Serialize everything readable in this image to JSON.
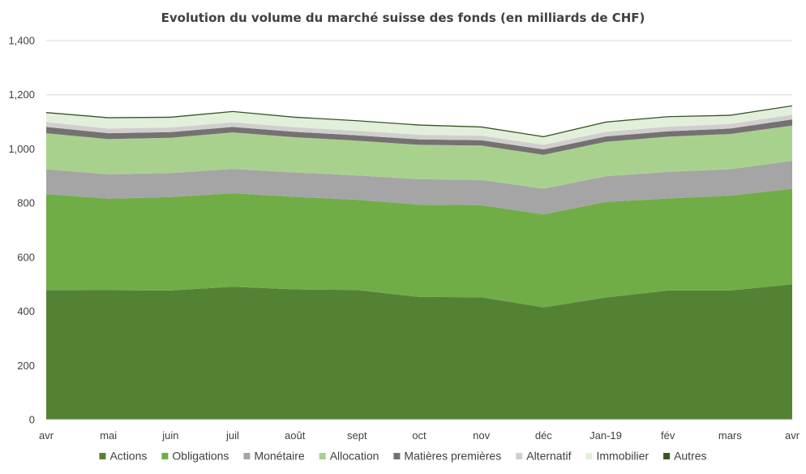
{
  "chart_data": {
    "type": "area",
    "stacked": true,
    "title": "Evolution du volume du marché suisse des fonds (en milliards de CHF)",
    "xlabel": "",
    "ylabel": "",
    "categories": [
      "avr",
      "mai",
      "juin",
      "juil",
      "août",
      "sept",
      "oct",
      "nov",
      "déc",
      "Jan-19",
      "fév",
      "mars",
      "avr"
    ],
    "y_ticks": [
      "0",
      "200",
      "400",
      "600",
      "800",
      "1,000",
      "1,200",
      "1,400"
    ],
    "y_tick_values": [
      0,
      200,
      400,
      600,
      800,
      1000,
      1200,
      1400
    ],
    "ylim": [
      0,
      1400
    ],
    "grid": true,
    "legend_position": "bottom",
    "series": [
      {
        "name": "Actions",
        "color": "#548235",
        "values": [
          479,
          478,
          477,
          491,
          481,
          479,
          453,
          452,
          415,
          451,
          477,
          477,
          500
        ]
      },
      {
        "name": "Obligations",
        "color": "#70ad47",
        "values": [
          354,
          338,
          345,
          345,
          342,
          333,
          341,
          340,
          343,
          353,
          340,
          350,
          353
        ]
      },
      {
        "name": "Monétaire",
        "color": "#a5a5a5",
        "values": [
          92,
          90,
          89,
          90,
          90,
          90,
          94,
          93,
          95,
          95,
          98,
          98,
          103
        ]
      },
      {
        "name": "Allocation",
        "color": "#a9d18e",
        "values": [
          133,
          130,
          130,
          135,
          130,
          128,
          127,
          127,
          125,
          127,
          130,
          130,
          130
        ]
      },
      {
        "name": "Matières premières",
        "color": "#767171",
        "values": [
          23,
          22,
          21,
          20,
          20,
          20,
          20,
          20,
          20,
          20,
          20,
          20,
          23
        ]
      },
      {
        "name": "Alternatif",
        "color": "#d0cece",
        "values": [
          18,
          17,
          17,
          17,
          17,
          17,
          17,
          17,
          17,
          17,
          17,
          17,
          17
        ]
      },
      {
        "name": "Immobilier",
        "color": "#e2efda",
        "values": [
          33,
          38,
          36,
          38,
          35,
          35,
          34,
          30,
          28,
          34,
          35,
          30,
          31
        ]
      },
      {
        "name": "Autres",
        "color": "#375623",
        "values": [
          4,
          4,
          4,
          4,
          4,
          4,
          4,
          4,
          4,
          4,
          4,
          4,
          4
        ]
      }
    ]
  }
}
